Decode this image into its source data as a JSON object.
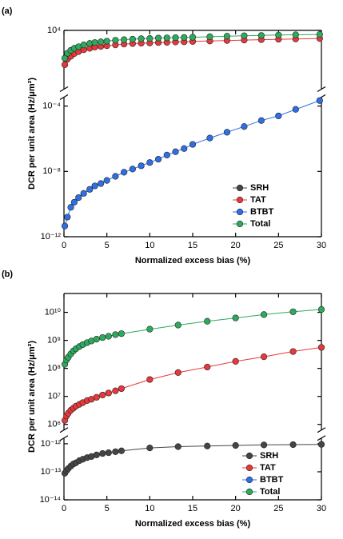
{
  "chart_data": [
    {
      "type": "line",
      "panel_label": "(a)",
      "x_label": "Normalized excess bias (%)",
      "y_label": "DCR per unit area (Hz/μm²)",
      "log_y": true,
      "xlim": [
        0,
        30
      ],
      "xticks": [
        0,
        5,
        10,
        15,
        20,
        25,
        30
      ],
      "ylim": [
        1e-12,
        10000
      ],
      "y_break": [
        0.00035,
        2.5
      ],
      "yticks": [
        {
          "value": 1e-12,
          "label": "10⁻¹²"
        },
        {
          "value": 1e-08,
          "label": "10⁻⁸"
        },
        {
          "value": 0.0001,
          "label": "10⁻⁴"
        },
        {
          "value": 10000,
          "label": "10⁴"
        }
      ],
      "legend": "lower right",
      "x": [
        0.1,
        0.4,
        0.8,
        1.2,
        1.7,
        2.3,
        3,
        3.6,
        4.3,
        5,
        6,
        7,
        8,
        9,
        10,
        11,
        12,
        13,
        14,
        15,
        17,
        19,
        21,
        23,
        25,
        27,
        29.8
      ],
      "series": [
        {
          "name": "SRH",
          "color": "#454545",
          "values": [
            null,
            null,
            null,
            null,
            null,
            null,
            null,
            null,
            null,
            null,
            null,
            null,
            null,
            null,
            null,
            null,
            null,
            null,
            null,
            null,
            null,
            null,
            null,
            null,
            null,
            null,
            null
          ]
        },
        {
          "name": "TAT",
          "color": "#e8383b",
          "values": [
            80,
            170,
            260,
            380,
            500,
            650,
            800,
            950,
            1050,
            1150,
            1300,
            1450,
            1550,
            1650,
            1700,
            1800,
            1850,
            1950,
            2000,
            2100,
            2250,
            2400,
            2550,
            2700,
            2850,
            3000,
            3200
          ]
        },
        {
          "name": "BTBT",
          "color": "#2f6fe4",
          "values": [
            4.5e-12,
            1.6e-11,
            6.3e-11,
            1.3e-10,
            2.5e-10,
            4.5e-10,
            7.9e-10,
            1.3e-09,
            1.8e-09,
            2.8e-09,
            5e-09,
            8.9e-09,
            1.4e-08,
            2.2e-08,
            3.5e-08,
            5.6e-08,
            1e-07,
            1.6e-07,
            2.5e-07,
            4.5e-07,
            1.1e-06,
            2.5e-06,
            5.6e-06,
            1.3e-05,
            2.5e-05,
            6.3e-05,
            0.00022
          ]
        },
        {
          "name": "Total",
          "color": "#2eaa5f",
          "values": [
            200,
            400,
            600,
            800,
            1000,
            1300,
            1600,
            1800,
            2000,
            2200,
            2500,
            2700,
            2900,
            3100,
            3200,
            3400,
            3500,
            3600,
            3700,
            3800,
            4100,
            4400,
            4700,
            4900,
            5200,
            5400,
            5600
          ]
        }
      ]
    },
    {
      "type": "line",
      "panel_label": "(b)",
      "x_label": "Normalized excess bias (%)",
      "y_label": "DCR per unit area (Hz/μm²)",
      "log_y": true,
      "xlim": [
        0,
        30
      ],
      "xticks": [
        0,
        5,
        10,
        15,
        20,
        25,
        30
      ],
      "ylim": [
        1e-14,
        47000000000
      ],
      "y_break": [
        1.6e-12,
        630000
      ],
      "yticks": [
        {
          "value": 1e-14,
          "label": "10⁻¹⁴"
        },
        {
          "value": 1e-13,
          "label": "10⁻¹³"
        },
        {
          "value": 1e-12,
          "label": "10⁻¹²"
        },
        {
          "value": 1000000,
          "label": "10⁶"
        },
        {
          "value": 10000000,
          "label": "10⁷"
        },
        {
          "value": 100000000,
          "label": "10⁸"
        },
        {
          "value": 1000000000,
          "label": "10⁹"
        },
        {
          "value": 10000000000,
          "label": "10¹⁰"
        }
      ],
      "legend": "lower right",
      "x": [
        0.1,
        0.3,
        0.5,
        0.8,
        1.1,
        1.4,
        1.8,
        2.2,
        2.7,
        3.2,
        3.8,
        4.5,
        5.2,
        6,
        6.7,
        10,
        13.3,
        16.7,
        20,
        23.3,
        26.7,
        30
      ],
      "series": [
        {
          "name": "SRH",
          "color": "#454545",
          "values": [
            8.9e-14,
            1.1e-13,
            1.3e-13,
            1.6e-13,
            1.9e-13,
            2.1e-13,
            2.5e-13,
            2.8e-13,
            3.2e-13,
            3.5e-13,
            4e-13,
            4.5e-13,
            4.8e-13,
            5.2e-13,
            5.6e-13,
            7.1e-13,
            7.9e-13,
            8.3e-13,
            8.7e-13,
            9.1e-13,
            9.3e-13,
            9.5e-13
          ]
        },
        {
          "name": "TAT",
          "color": "#e8383b",
          "values": [
            1400000,
            2000000,
            2500000,
            3200000,
            3800000,
            4500000,
            5200000,
            6000000,
            7100000,
            7900000,
            9300000,
            11200000,
            13200000,
            15800000,
            19000000,
            40000000,
            71000000,
            112000000,
            178000000,
            260000000,
            400000000,
            560000000
          ]
        },
        {
          "name": "BTBT",
          "color": "#2f6fe4",
          "values": [
            null,
            null,
            null,
            null,
            null,
            null,
            null,
            null,
            null,
            null,
            null,
            null,
            null,
            null,
            null,
            null,
            null,
            null,
            null,
            null,
            null,
            null
          ]
        },
        {
          "name": "Total",
          "color": "#2eaa5f",
          "values": [
            140000000,
            200000000,
            250000000,
            330000000,
            420000000,
            500000000,
            600000000,
            710000000,
            830000000,
            950000000,
            1100000000,
            1260000000,
            1400000000,
            1600000000,
            1740000000,
            2500000000,
            3500000000,
            4800000000,
            6300000000,
            8300000000,
            10500000000,
            12600000000
          ]
        }
      ]
    }
  ]
}
